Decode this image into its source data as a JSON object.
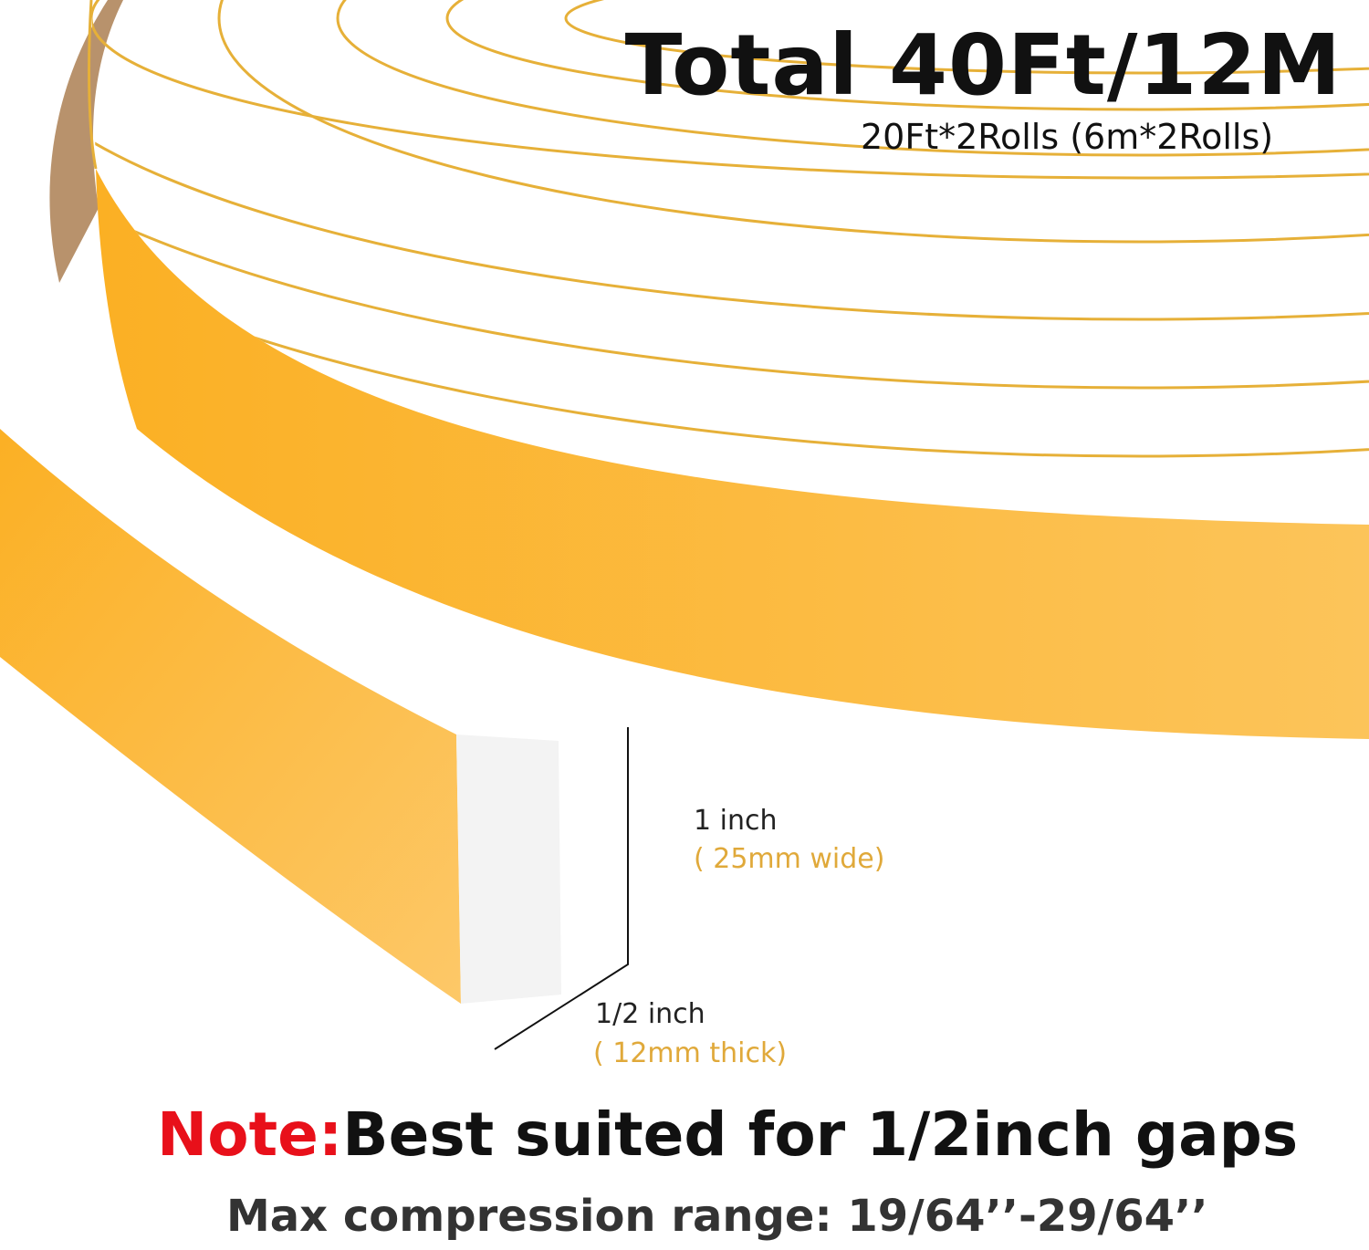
{
  "header": {
    "title": "Total 40Ft/12M",
    "subtitle": "20Ft*2Rolls (6m*2Rolls)"
  },
  "dimensions": {
    "width_main": "1 inch",
    "width_sub": "( 25mm wide)",
    "thickness_main": "1/2 inch",
    "thickness_sub": "( 12mm thick)"
  },
  "footer": {
    "note_label": "Note:",
    "note_text": "Best suited for 1/2inch gaps",
    "range_text": "Max compression range: 19/64’’-29/64’’"
  },
  "colors": {
    "foam_side": "#fbb52c",
    "adhesive_line": "#e6b038",
    "backing_paper": "#b8926c",
    "note_accent": "#e8101a",
    "dimension_accent": "#e0a93a"
  }
}
